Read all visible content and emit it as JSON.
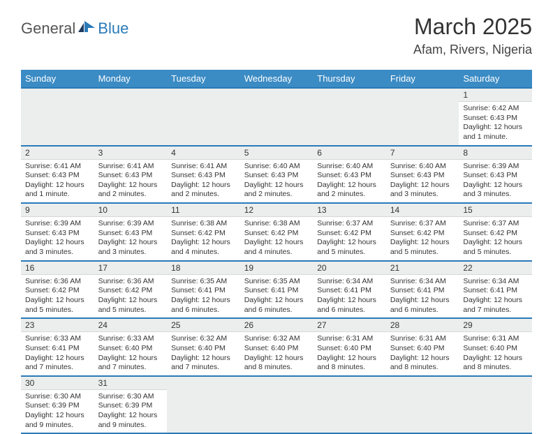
{
  "logo": {
    "general": "General",
    "blue": "Blue"
  },
  "title": "March 2025",
  "location": "Afam, Rivers, Nigeria",
  "colors": {
    "header_bg": "#3b8bc4",
    "border": "#2a7ab8",
    "daynum_bg": "#eceeee",
    "text": "#333333"
  },
  "weekdays": [
    "Sunday",
    "Monday",
    "Tuesday",
    "Wednesday",
    "Thursday",
    "Friday",
    "Saturday"
  ],
  "startOffset": 6,
  "days": [
    {
      "n": "1",
      "sr": "Sunrise: 6:42 AM",
      "ss": "Sunset: 6:43 PM",
      "dl": "Daylight: 12 hours and 1 minute."
    },
    {
      "n": "2",
      "sr": "Sunrise: 6:41 AM",
      "ss": "Sunset: 6:43 PM",
      "dl": "Daylight: 12 hours and 1 minute."
    },
    {
      "n": "3",
      "sr": "Sunrise: 6:41 AM",
      "ss": "Sunset: 6:43 PM",
      "dl": "Daylight: 12 hours and 2 minutes."
    },
    {
      "n": "4",
      "sr": "Sunrise: 6:41 AM",
      "ss": "Sunset: 6:43 PM",
      "dl": "Daylight: 12 hours and 2 minutes."
    },
    {
      "n": "5",
      "sr": "Sunrise: 6:40 AM",
      "ss": "Sunset: 6:43 PM",
      "dl": "Daylight: 12 hours and 2 minutes."
    },
    {
      "n": "6",
      "sr": "Sunrise: 6:40 AM",
      "ss": "Sunset: 6:43 PM",
      "dl": "Daylight: 12 hours and 2 minutes."
    },
    {
      "n": "7",
      "sr": "Sunrise: 6:40 AM",
      "ss": "Sunset: 6:43 PM",
      "dl": "Daylight: 12 hours and 3 minutes."
    },
    {
      "n": "8",
      "sr": "Sunrise: 6:39 AM",
      "ss": "Sunset: 6:43 PM",
      "dl": "Daylight: 12 hours and 3 minutes."
    },
    {
      "n": "9",
      "sr": "Sunrise: 6:39 AM",
      "ss": "Sunset: 6:43 PM",
      "dl": "Daylight: 12 hours and 3 minutes."
    },
    {
      "n": "10",
      "sr": "Sunrise: 6:39 AM",
      "ss": "Sunset: 6:43 PM",
      "dl": "Daylight: 12 hours and 3 minutes."
    },
    {
      "n": "11",
      "sr": "Sunrise: 6:38 AM",
      "ss": "Sunset: 6:42 PM",
      "dl": "Daylight: 12 hours and 4 minutes."
    },
    {
      "n": "12",
      "sr": "Sunrise: 6:38 AM",
      "ss": "Sunset: 6:42 PM",
      "dl": "Daylight: 12 hours and 4 minutes."
    },
    {
      "n": "13",
      "sr": "Sunrise: 6:37 AM",
      "ss": "Sunset: 6:42 PM",
      "dl": "Daylight: 12 hours and 5 minutes."
    },
    {
      "n": "14",
      "sr": "Sunrise: 6:37 AM",
      "ss": "Sunset: 6:42 PM",
      "dl": "Daylight: 12 hours and 5 minutes."
    },
    {
      "n": "15",
      "sr": "Sunrise: 6:37 AM",
      "ss": "Sunset: 6:42 PM",
      "dl": "Daylight: 12 hours and 5 minutes."
    },
    {
      "n": "16",
      "sr": "Sunrise: 6:36 AM",
      "ss": "Sunset: 6:42 PM",
      "dl": "Daylight: 12 hours and 5 minutes."
    },
    {
      "n": "17",
      "sr": "Sunrise: 6:36 AM",
      "ss": "Sunset: 6:42 PM",
      "dl": "Daylight: 12 hours and 5 minutes."
    },
    {
      "n": "18",
      "sr": "Sunrise: 6:35 AM",
      "ss": "Sunset: 6:41 PM",
      "dl": "Daylight: 12 hours and 6 minutes."
    },
    {
      "n": "19",
      "sr": "Sunrise: 6:35 AM",
      "ss": "Sunset: 6:41 PM",
      "dl": "Daylight: 12 hours and 6 minutes."
    },
    {
      "n": "20",
      "sr": "Sunrise: 6:34 AM",
      "ss": "Sunset: 6:41 PM",
      "dl": "Daylight: 12 hours and 6 minutes."
    },
    {
      "n": "21",
      "sr": "Sunrise: 6:34 AM",
      "ss": "Sunset: 6:41 PM",
      "dl": "Daylight: 12 hours and 6 minutes."
    },
    {
      "n": "22",
      "sr": "Sunrise: 6:34 AM",
      "ss": "Sunset: 6:41 PM",
      "dl": "Daylight: 12 hours and 7 minutes."
    },
    {
      "n": "23",
      "sr": "Sunrise: 6:33 AM",
      "ss": "Sunset: 6:41 PM",
      "dl": "Daylight: 12 hours and 7 minutes."
    },
    {
      "n": "24",
      "sr": "Sunrise: 6:33 AM",
      "ss": "Sunset: 6:40 PM",
      "dl": "Daylight: 12 hours and 7 minutes."
    },
    {
      "n": "25",
      "sr": "Sunrise: 6:32 AM",
      "ss": "Sunset: 6:40 PM",
      "dl": "Daylight: 12 hours and 7 minutes."
    },
    {
      "n": "26",
      "sr": "Sunrise: 6:32 AM",
      "ss": "Sunset: 6:40 PM",
      "dl": "Daylight: 12 hours and 8 minutes."
    },
    {
      "n": "27",
      "sr": "Sunrise: 6:31 AM",
      "ss": "Sunset: 6:40 PM",
      "dl": "Daylight: 12 hours and 8 minutes."
    },
    {
      "n": "28",
      "sr": "Sunrise: 6:31 AM",
      "ss": "Sunset: 6:40 PM",
      "dl": "Daylight: 12 hours and 8 minutes."
    },
    {
      "n": "29",
      "sr": "Sunrise: 6:31 AM",
      "ss": "Sunset: 6:40 PM",
      "dl": "Daylight: 12 hours and 8 minutes."
    },
    {
      "n": "30",
      "sr": "Sunrise: 6:30 AM",
      "ss": "Sunset: 6:39 PM",
      "dl": "Daylight: 12 hours and 9 minutes."
    },
    {
      "n": "31",
      "sr": "Sunrise: 6:30 AM",
      "ss": "Sunset: 6:39 PM",
      "dl": "Daylight: 12 hours and 9 minutes."
    }
  ]
}
